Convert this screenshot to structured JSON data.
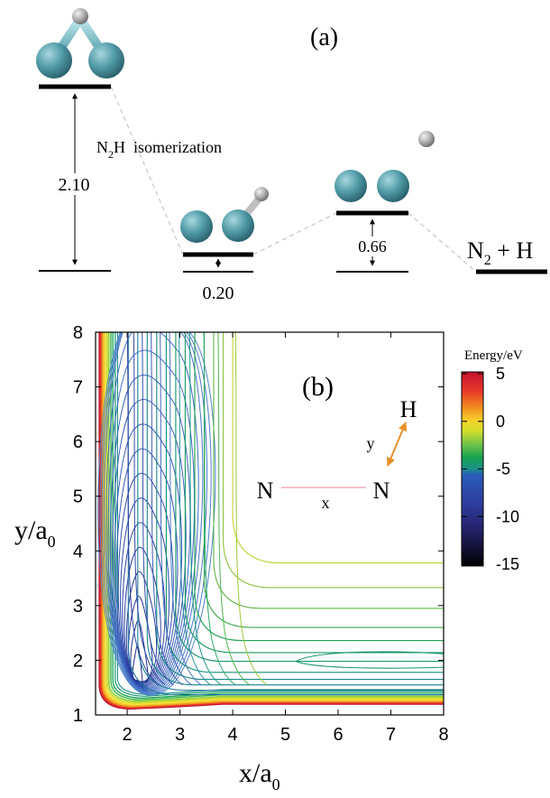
{
  "panel_a": {
    "label": "(a)",
    "title_prefix": "N",
    "title_sub": "2",
    "title_rest": "H  isomerization",
    "energy_gaps": [
      {
        "value": "2.10"
      },
      {
        "value": "0.20"
      },
      {
        "value": "0.66"
      }
    ],
    "product_n": "N",
    "product_sub": "2",
    "product_rest": " + H"
  },
  "panel_b": {
    "label": "(b)",
    "ylabel_main": "y/a",
    "ylabel_sub": "0",
    "xlabel_main": "x/a",
    "xlabel_sub": "0",
    "colorbar_title": "Energy/eV",
    "colorbar_ticks": [
      5,
      0,
      -5,
      -10,
      -15
    ],
    "colorbar_colors": [
      "#c4122e",
      "#e8392a",
      "#f08a1e",
      "#f6d02b",
      "#d6df2a",
      "#74c44a",
      "#17a34f",
      "#1b8f8a",
      "#2a5cb8",
      "#2d3d9e",
      "#26236e",
      "#110f2e",
      "#000000"
    ],
    "schematic": {
      "n_left": "N",
      "n_right": "N",
      "h_atom": "H",
      "x_label": "x",
      "y_label": "y",
      "x_arrow_color": "#c8102e",
      "y_arrow_color": "#e8912c"
    }
  },
  "chart_data": {
    "type": "contour",
    "x_range": [
      1.4,
      8
    ],
    "y_range": [
      1,
      8
    ],
    "xticks": [
      2,
      3,
      4,
      5,
      6,
      7,
      8
    ],
    "yticks": [
      1,
      2,
      3,
      4,
      5,
      6,
      7,
      8
    ],
    "colorbar_range": [
      -15,
      5
    ],
    "min_location": {
      "x": 2.2,
      "y": 1.95
    },
    "asymptote_contours_y": [
      3.78,
      3.33,
      2.95,
      2.6,
      2.36,
      2.14,
      1.98,
      1.78,
      1.65,
      1.55,
      1.45,
      1.37
    ]
  }
}
